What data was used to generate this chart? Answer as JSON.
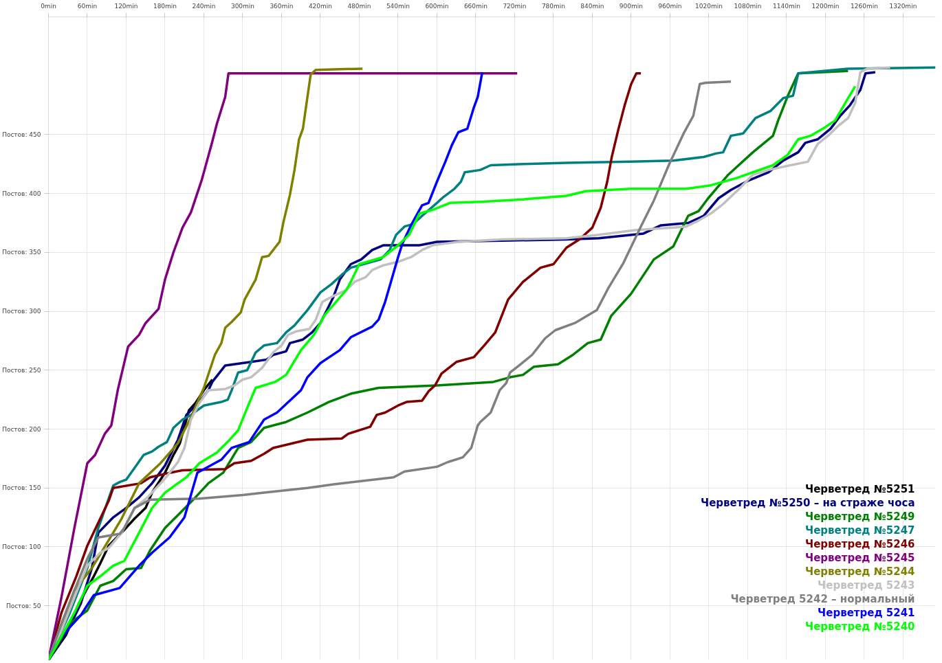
{
  "chart_data": {
    "type": "line",
    "xlim": [
      0,
      1370
    ],
    "ylim": [
      4,
      550
    ],
    "xticks": [
      {
        "value": 0,
        "label": "0min"
      },
      {
        "value": 60,
        "label": "60min"
      },
      {
        "value": 120,
        "label": "120min"
      },
      {
        "value": 180,
        "label": "180min"
      },
      {
        "value": 240,
        "label": "240min"
      },
      {
        "value": 300,
        "label": "300min"
      },
      {
        "value": 360,
        "label": "360min"
      },
      {
        "value": 420,
        "label": "420min"
      },
      {
        "value": 480,
        "label": "480min"
      },
      {
        "value": 540,
        "label": "540min"
      },
      {
        "value": 600,
        "label": "600min"
      },
      {
        "value": 660,
        "label": "660min"
      },
      {
        "value": 720,
        "label": "720min"
      },
      {
        "value": 780,
        "label": "780min"
      },
      {
        "value": 840,
        "label": "840min"
      },
      {
        "value": 900,
        "label": "900min"
      },
      {
        "value": 960,
        "label": "960min"
      },
      {
        "value": 1020,
        "label": "1020min"
      },
      {
        "value": 1080,
        "label": "1080min"
      },
      {
        "value": 1140,
        "label": "1140min"
      },
      {
        "value": 1200,
        "label": "1200min"
      },
      {
        "value": 1260,
        "label": "1260min"
      },
      {
        "value": 1320,
        "label": "1320min"
      }
    ],
    "yticks": [
      {
        "value": 50,
        "label": "Постов: 50"
      },
      {
        "value": 100,
        "label": "Постов: 100"
      },
      {
        "value": 150,
        "label": "Постов: 150"
      },
      {
        "value": 200,
        "label": "Постов: 200"
      },
      {
        "value": 250,
        "label": "Постов: 250"
      },
      {
        "value": 300,
        "label": "Постов: 300"
      },
      {
        "value": 350,
        "label": "Постов: 350"
      },
      {
        "value": 400,
        "label": "Постов: 400"
      },
      {
        "value": 450,
        "label": "Постов: 450"
      }
    ],
    "grid": true,
    "legend": "bottom right",
    "marker": "none",
    "line_style": "solid",
    "series": [
      {
        "name": "Черветред №5251",
        "color": "#000000",
        "x": [
          0,
          27,
          47,
          70,
          80,
          93,
          113,
          133,
          150,
          160,
          180,
          193,
          203,
          217,
          227,
          240,
          253
        ],
        "values": [
          4,
          25,
          52,
          75,
          86,
          101,
          112,
          124,
          133,
          146,
          163,
          178,
          188,
          216,
          222,
          233,
          242
        ]
      },
      {
        "name": "Черветред №5250 – на страже чоса",
        "color": "#000080",
        "x": [
          0,
          30,
          50,
          67,
          77,
          100,
          120,
          140,
          160,
          180,
          200,
          213,
          233,
          247,
          253,
          273,
          313,
          337,
          347,
          367,
          373,
          393,
          407,
          420,
          440,
          450,
          467,
          483,
          500,
          517,
          573,
          600,
          700,
          800,
          850,
          919,
          946,
          988,
          1012,
          1035,
          1054,
          1081,
          1112,
          1135,
          1158,
          1169,
          1188,
          1208,
          1223,
          1238,
          1254,
          1262,
          1277
        ],
        "values": [
          4,
          29,
          52,
          82,
          112,
          125,
          133,
          142,
          154,
          169,
          191,
          212,
          223,
          233,
          240,
          254,
          257,
          259,
          263,
          266,
          273,
          276,
          282,
          290,
          312,
          327,
          340,
          344,
          352,
          356,
          356,
          359,
          360,
          361,
          362,
          366,
          373,
          375,
          381,
          396,
          403,
          411,
          418,
          428,
          435,
          443,
          446,
          455,
          466,
          475,
          488,
          502,
          503
        ]
      },
      {
        "name": "Черветред №5249",
        "color": "#008000",
        "x": [
          0,
          33,
          60,
          80,
          100,
          120,
          143,
          157,
          180,
          200,
          227,
          247,
          270,
          293,
          313,
          333,
          367,
          400,
          433,
          467,
          510,
          600,
          687,
          713,
          733,
          750,
          787,
          810,
          833,
          853,
          869,
          900,
          935,
          965,
          988,
          1004,
          1019,
          1050,
          1088,
          1119,
          1127,
          1142,
          1158,
          1235
        ],
        "values": [
          4,
          35,
          46,
          67,
          71,
          81,
          82,
          97,
          116,
          127,
          142,
          154,
          163,
          184,
          189,
          201,
          206,
          214,
          223,
          230,
          235,
          237,
          240,
          244,
          246,
          253,
          255,
          263,
          273,
          276,
          296,
          315,
          344,
          355,
          381,
          385,
          396,
          416,
          435,
          449,
          462,
          483,
          502,
          504
        ]
      },
      {
        "name": "Черветред №5247",
        "color": "#008080",
        "x": [
          0,
          33,
          60,
          77,
          100,
          110,
          120,
          133,
          147,
          160,
          170,
          183,
          193,
          207,
          220,
          240,
          267,
          277,
          283,
          293,
          307,
          320,
          333,
          353,
          367,
          380,
          400,
          420,
          437,
          453,
          467,
          493,
          513,
          527,
          537,
          550,
          563,
          577,
          600,
          610,
          627,
          637,
          643,
          667,
          683,
          733,
          800,
          900,
          965,
          1012,
          1031,
          1042,
          1054,
          1073,
          1092,
          1115,
          1135,
          1150,
          1158,
          1235,
          1370
        ],
        "values": [
          4,
          44,
          82,
          116,
          152,
          155,
          157,
          167,
          178,
          181,
          185,
          189,
          201,
          208,
          212,
          220,
          223,
          225,
          233,
          248,
          250,
          265,
          271,
          273,
          282,
          288,
          301,
          316,
          323,
          331,
          337,
          341,
          344,
          352,
          365,
          372,
          374,
          381,
          392,
          397,
          404,
          410,
          418,
          420,
          424,
          425,
          426,
          427,
          428,
          431,
          434,
          435,
          449,
          451,
          464,
          470,
          481,
          483,
          502,
          506,
          507
        ]
      },
      {
        "name": "Черветред №5246",
        "color": "#800000",
        "x": [
          0,
          20,
          43,
          60,
          80,
          93,
          100,
          143,
          157,
          180,
          207,
          273,
          287,
          313,
          333,
          347,
          400,
          453,
          463,
          497,
          507,
          520,
          540,
          553,
          577,
          587,
          597,
          607,
          630,
          657,
          673,
          690,
          710,
          733,
          760,
          780,
          800,
          820,
          840,
          853,
          863,
          870,
          880,
          890,
          900,
          908,
          915
        ],
        "values": [
          4,
          44,
          75,
          101,
          124,
          139,
          150,
          154,
          159,
          162,
          165,
          166,
          171,
          173,
          179,
          184,
          191,
          192,
          196,
          202,
          212,
          214,
          220,
          223,
          224,
          232,
          237,
          247,
          257,
          261,
          271,
          282,
          310,
          325,
          337,
          340,
          354,
          361,
          371,
          388,
          410,
          431,
          454,
          475,
          493,
          502,
          502
        ]
      },
      {
        "name": "Черветред №5245",
        "color": "#800080",
        "x": [
          0,
          20,
          40,
          60,
          72,
          87,
          97,
          107,
          123,
          140,
          150,
          170,
          180,
          193,
          207,
          220,
          237,
          253,
          260,
          273,
          278,
          724
        ],
        "values": [
          4,
          57,
          116,
          171,
          178,
          196,
          203,
          233,
          270,
          280,
          290,
          302,
          327,
          350,
          371,
          384,
          412,
          444,
          459,
          482,
          502,
          502
        ]
      },
      {
        "name": "Черветред №5244",
        "color": "#808000",
        "x": [
          0,
          40,
          67,
          100,
          113,
          140,
          173,
          200,
          220,
          240,
          257,
          267,
          273,
          283,
          297,
          303,
          320,
          330,
          340,
          357,
          363,
          373,
          380,
          387,
          393,
          400,
          405,
          413,
          485
        ],
        "values": [
          4,
          63,
          82,
          112,
          124,
          154,
          171,
          188,
          210,
          235,
          263,
          273,
          286,
          291,
          299,
          310,
          327,
          346,
          347,
          359,
          376,
          399,
          420,
          446,
          455,
          482,
          501,
          505,
          506
        ]
      },
      {
        "name": "Черветред 5243",
        "color": "#c0c0c0",
        "x": [
          0,
          20,
          40,
          60,
          80,
          93,
          113,
          133,
          153,
          180,
          200,
          210,
          220,
          233,
          247,
          273,
          287,
          300,
          313,
          330,
          347,
          360,
          370,
          383,
          403,
          413,
          423,
          440,
          460,
          473,
          490,
          500,
          517,
          540,
          560,
          577,
          593,
          633,
          700,
          800,
          850,
          908,
          965,
          985,
          1004,
          1023,
          1042,
          1065,
          1088,
          1112,
          1146,
          1173,
          1188,
          1204,
          1219,
          1235,
          1246,
          1254,
          1265,
          1300
        ],
        "values": [
          4,
          29,
          57,
          84,
          95,
          99,
          112,
          133,
          142,
          158,
          172,
          184,
          208,
          222,
          233,
          234,
          237,
          242,
          244,
          252,
          265,
          271,
          280,
          283,
          285,
          293,
          308,
          313,
          318,
          325,
          329,
          335,
          339,
          342,
          346,
          352,
          356,
          359,
          361,
          362,
          365,
          369,
          371,
          372,
          377,
          383,
          391,
          403,
          416,
          420,
          424,
          427,
          442,
          449,
          457,
          464,
          477,
          503,
          506,
          507
        ]
      },
      {
        "name": "Черветред 5242 – нормальный",
        "color": "#808080",
        "x": [
          0,
          20,
          40,
          60,
          77,
          110,
          117,
          133,
          157,
          233,
          300,
          333,
          400,
          440,
          533,
          550,
          600,
          617,
          640,
          653,
          663,
          667,
          683,
          697,
          707,
          713,
          727,
          747,
          767,
          783,
          813,
          847,
          865,
          888,
          915,
          935,
          958,
          981,
          996,
          1006,
          1015,
          1054
        ],
        "values": [
          4,
          35,
          63,
          90,
          108,
          111,
          116,
          133,
          140,
          141,
          144,
          146,
          150,
          153,
          159,
          164,
          168,
          172,
          176,
          184,
          203,
          206,
          214,
          233,
          239,
          248,
          254,
          263,
          277,
          284,
          290,
          301,
          320,
          341,
          372,
          394,
          424,
          451,
          466,
          493,
          494,
          495
        ]
      },
      {
        "name": "Черветред 5241",
        "color": "#0000ff",
        "x": [
          0,
          20,
          50,
          70,
          110,
          140,
          160,
          187,
          210,
          230,
          267,
          283,
          310,
          333,
          353,
          390,
          400,
          420,
          450,
          467,
          500,
          510,
          520,
          530,
          540,
          547,
          560,
          577,
          587,
          600,
          613,
          623,
          633,
          647,
          657,
          663,
          670
        ],
        "values": [
          4,
          24,
          42,
          59,
          65,
          84,
          95,
          108,
          125,
          163,
          174,
          184,
          189,
          208,
          214,
          233,
          244,
          256,
          267,
          278,
          287,
          293,
          308,
          327,
          346,
          358,
          373,
          390,
          392,
          410,
          427,
          441,
          452,
          455,
          473,
          482,
          503
        ]
      },
      {
        "name": "Черветред №5240",
        "color": "#00ff00",
        "x": [
          0,
          20,
          40,
          60,
          80,
          100,
          117,
          140,
          160,
          180,
          200,
          213,
          233,
          260,
          280,
          293,
          307,
          320,
          350,
          367,
          390,
          410,
          427,
          460,
          467,
          480,
          517,
          540,
          557,
          573,
          593,
          620,
          667,
          733,
          800,
          830,
          900,
          985,
          1023,
          1062,
          1119,
          1142,
          1158,
          1177,
          1196,
          1215,
          1235,
          1246
        ],
        "values": [
          4,
          24,
          44,
          67,
          75,
          84,
          88,
          112,
          133,
          146,
          154,
          159,
          171,
          180,
          191,
          199,
          218,
          235,
          240,
          246,
          267,
          280,
          297,
          318,
          325,
          340,
          346,
          356,
          365,
          383,
          386,
          392,
          393,
          395,
          398,
          402,
          404,
          404,
          407,
          413,
          424,
          433,
          446,
          449,
          455,
          462,
          481,
          491
        ]
      }
    ]
  }
}
